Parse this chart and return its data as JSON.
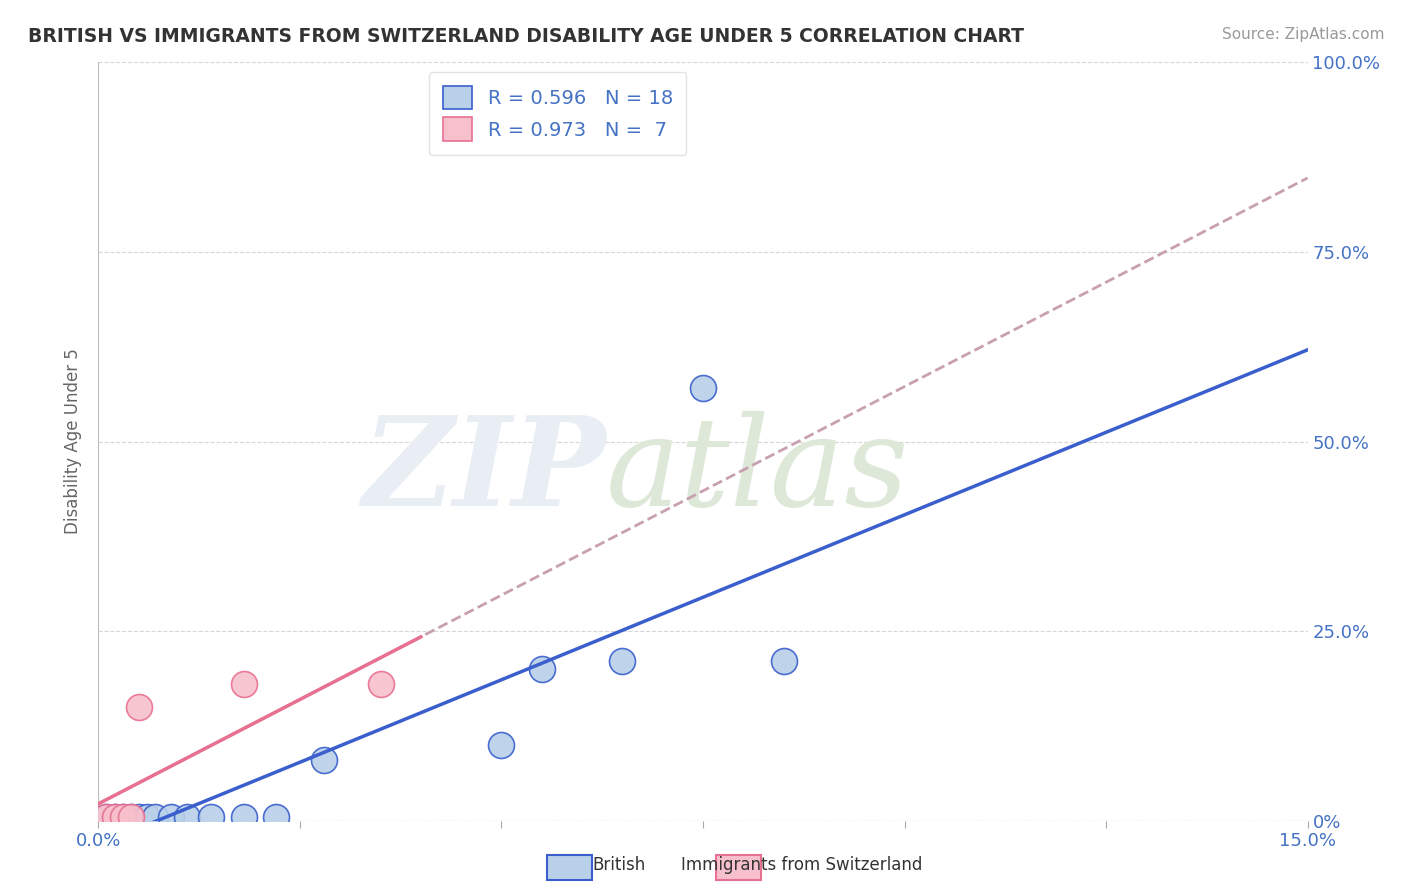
{
  "title": "BRITISH VS IMMIGRANTS FROM SWITZERLAND DISABILITY AGE UNDER 5 CORRELATION CHART",
  "source": "Source: ZipAtlas.com",
  "ylabel": "Disability Age Under 5",
  "xlim": [
    0.0,
    0.15
  ],
  "ylim": [
    0.0,
    1.0
  ],
  "british_x": [
    0.001,
    0.002,
    0.003,
    0.004,
    0.005,
    0.006,
    0.007,
    0.009,
    0.011,
    0.014,
    0.018,
    0.022,
    0.028,
    0.05,
    0.055,
    0.065,
    0.075,
    0.085
  ],
  "british_y": [
    0.005,
    0.005,
    0.005,
    0.005,
    0.005,
    0.005,
    0.005,
    0.005,
    0.005,
    0.005,
    0.005,
    0.005,
    0.08,
    0.1,
    0.2,
    0.21,
    0.57,
    0.21
  ],
  "swiss_x": [
    0.001,
    0.002,
    0.003,
    0.004,
    0.005,
    0.018,
    0.035
  ],
  "swiss_y": [
    0.005,
    0.005,
    0.005,
    0.005,
    0.15,
    0.18,
    0.18
  ],
  "british_color": "#b8d0e8",
  "swiss_color": "#f8c0cc",
  "british_line_color": "#3a5fcd",
  "swiss_line_color": "#e87090",
  "swiss_dash_color": "#d0a0b0",
  "r_british": "0.596",
  "n_british": "18",
  "r_swiss": "0.973",
  "n_swiss": "7",
  "background_color": "#ffffff",
  "grid_color": "#cccccc"
}
